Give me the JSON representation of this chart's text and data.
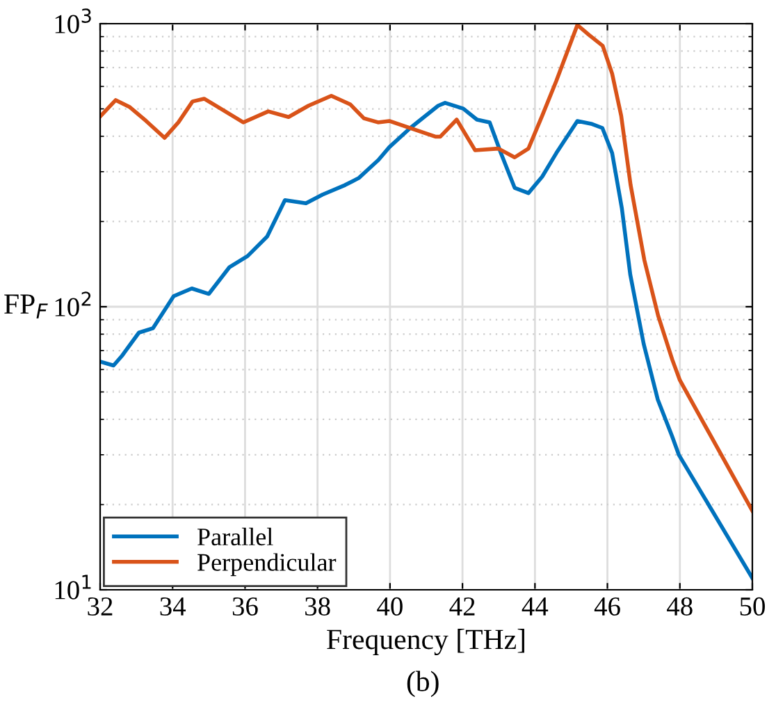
{
  "chart_data": {
    "type": "line",
    "xlabel": "Frequency [THz]",
    "ylabel": "FP$_{F}$",
    "annotations": [
      "(b)"
    ],
    "log": "y",
    "grid": true,
    "legend": "bottom left",
    "line_style": "solid",
    "marker": "none",
    "xlim": [
      32,
      50
    ],
    "xticks": [
      32,
      34,
      36,
      38,
      40,
      42,
      44,
      46,
      48,
      50
    ],
    "ylim": [
      10,
      1000
    ],
    "yticks": [
      {
        "value": 10,
        "label": "10$^{1}$"
      },
      {
        "value": 100,
        "label": "10$^{2}$"
      },
      {
        "value": 1000,
        "label": "10$^{3}$"
      }
    ],
    "series": [
      {
        "name": "Parallel",
        "color": "#0072bd",
        "x": [
          32,
          32.37,
          32.6,
          33.07,
          33.46,
          34.03,
          34.53,
          35.0,
          35.57,
          36.07,
          36.61,
          37.1,
          37.68,
          38.14,
          38.76,
          39.14,
          39.68,
          39.98,
          40.56,
          41.33,
          41.52,
          42.02,
          42.4,
          42.75,
          43.06,
          43.44,
          43.82,
          44.2,
          44.59,
          45.17,
          45.55,
          45.86,
          46.13,
          46.4,
          46.63,
          47.0,
          47.39,
          47.78,
          47.97,
          50
        ],
        "values": [
          64,
          62,
          67,
          81,
          84,
          109,
          116,
          111,
          138,
          151,
          177,
          238,
          232,
          249,
          269,
          285,
          330,
          366,
          428,
          513,
          525,
          501,
          458,
          448,
          349,
          263,
          252,
          288,
          349,
          453,
          443,
          428,
          349,
          222,
          130,
          74,
          47,
          35,
          30,
          11
        ]
      },
      {
        "name": "Perpendicular",
        "color": "#d95319",
        "x": [
          32,
          32.43,
          32.82,
          33.27,
          33.78,
          34.16,
          34.55,
          34.87,
          35.19,
          35.95,
          36.64,
          37.2,
          37.75,
          38.38,
          38.9,
          39.28,
          39.67,
          39.98,
          40.43,
          41.25,
          41.39,
          41.84,
          42.35,
          42.99,
          43.44,
          43.82,
          44.2,
          44.59,
          45.17,
          45.49,
          45.87,
          46.13,
          46.38,
          46.64,
          47.02,
          47.4,
          47.79,
          48.0,
          50
        ],
        "values": [
          470,
          537,
          507,
          453,
          395,
          448,
          531,
          543,
          513,
          448,
          490,
          468,
          513,
          556,
          519,
          463,
          448,
          453,
          433,
          399,
          399,
          458,
          357,
          362,
          337,
          362,
          473,
          628,
          989,
          913,
          835,
          666,
          473,
          269,
          146,
          93,
          65,
          55,
          19
        ]
      }
    ]
  }
}
